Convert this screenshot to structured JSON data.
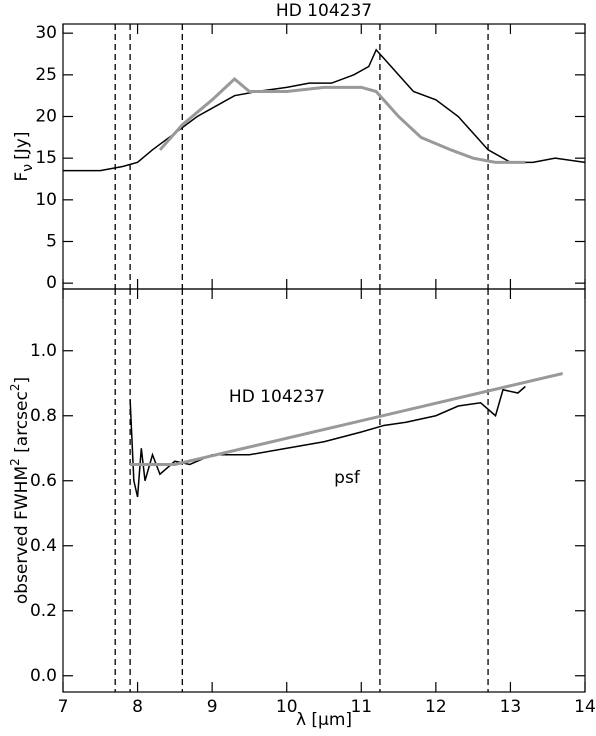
{
  "chart_data": [
    {
      "type": "line",
      "title": "HD 104237",
      "ylabel": "F",
      "ylabel_sub": "ν",
      "ylabel_unit": "[Jy]",
      "xlim": [
        7,
        14
      ],
      "xticks": [
        7,
        8,
        9,
        10,
        11,
        12,
        13,
        14
      ],
      "ylim": [
        -0.7,
        31.1
      ],
      "yticks": [
        0,
        5,
        10,
        15,
        20,
        25,
        30
      ],
      "vlines": [
        7.7,
        7.9,
        8.6,
        11.25,
        12.7
      ],
      "series": [
        {
          "color": "#000000",
          "x": [
            7.0,
            7.3,
            7.5,
            7.8,
            8.0,
            8.2,
            8.5,
            8.8,
            9.0,
            9.3,
            9.6,
            10.0,
            10.3,
            10.6,
            10.9,
            11.1,
            11.2,
            11.3,
            11.5,
            11.7,
            12.0,
            12.3,
            12.5,
            12.7,
            13.0,
            13.3,
            13.6,
            14.0
          ],
          "values": [
            13.5,
            13.5,
            13.5,
            14,
            14.5,
            16,
            18,
            20,
            21,
            22.5,
            23,
            23.5,
            24,
            24,
            25,
            26,
            28,
            27,
            25,
            23,
            22,
            20,
            18,
            16,
            14.5,
            14.5,
            15,
            14.5
          ]
        },
        {
          "color": "#999999",
          "x": [
            8.3,
            8.6,
            9.0,
            9.3,
            9.5,
            10.0,
            10.5,
            11.0,
            11.2,
            11.5,
            11.8,
            12.2,
            12.5,
            12.8,
            13.2
          ],
          "values": [
            16,
            19,
            22,
            24.5,
            23,
            23,
            23.5,
            23.5,
            23,
            20,
            17.5,
            16,
            15,
            14.5,
            14.5
          ]
        }
      ]
    },
    {
      "type": "line",
      "xlabel": "λ [μm]",
      "ylabel_parts": [
        "observed FWHM",
        "2",
        " [arcsec",
        "2",
        "]"
      ],
      "xlim": [
        7,
        14
      ],
      "xticks": [
        7,
        8,
        9,
        10,
        11,
        12,
        13,
        14
      ],
      "ylim": [
        -0.05,
        1.19
      ],
      "yticks": [
        {
          "value": 0,
          "label": "0.0"
        },
        0.2,
        0.4,
        0.6,
        0.8,
        {
          "value": 1,
          "label": "1.0"
        }
      ],
      "vlines": [
        7.7,
        7.9,
        8.6,
        11.25,
        12.7
      ],
      "annotations": [
        "HD 104237",
        "psf"
      ],
      "series": [
        {
          "color": "#000000",
          "x": [
            7.9,
            7.95,
            8.0,
            8.05,
            8.1,
            8.2,
            8.3,
            8.5,
            8.7,
            9.0,
            9.5,
            10.0,
            10.5,
            11.0,
            11.3,
            11.6,
            12.0,
            12.3,
            12.6,
            12.8,
            12.9,
            13.1,
            13.2
          ],
          "values": [
            0.85,
            0.6,
            0.55,
            0.7,
            0.6,
            0.68,
            0.62,
            0.66,
            0.65,
            0.68,
            0.68,
            0.7,
            0.72,
            0.75,
            0.77,
            0.78,
            0.8,
            0.83,
            0.84,
            0.8,
            0.88,
            0.87,
            0.89
          ]
        },
        {
          "color": "#999999",
          "x": [
            7.9,
            8.5,
            13.7
          ],
          "values": [
            0.65,
            0.65,
            0.93
          ]
        }
      ]
    }
  ]
}
